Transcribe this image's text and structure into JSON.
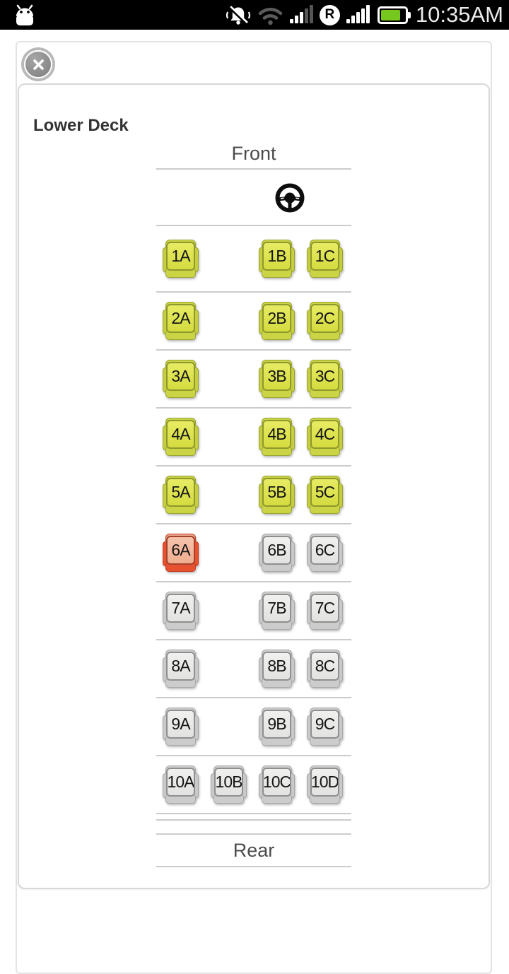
{
  "status_bar": {
    "time": "10:35AM",
    "roaming_label": "R",
    "battery_color": "#76c81e",
    "icons": [
      "android-logo-icon",
      "vibrate-silent-icon",
      "wifi-icon",
      "signal-strength-sim1-icon",
      "roaming-r-icon",
      "signal-strength-sim2-icon",
      "battery-icon"
    ]
  },
  "overlay": {
    "close_button": "close"
  },
  "deck": {
    "title": "Lower Deck",
    "front_label": "Front",
    "rear_label": "Rear"
  },
  "seat_legend_colors": {
    "available": "#dce24e",
    "selected": "#e8512f",
    "booked": "#dcdcda"
  },
  "seat_rows": [
    {
      "row": 1,
      "seats": [
        {
          "label": "1A",
          "state": "available",
          "col": 1
        },
        {
          "label": "1B",
          "state": "available",
          "col": 3
        },
        {
          "label": "1C",
          "state": "available",
          "col": 4
        }
      ]
    },
    {
      "row": 2,
      "seats": [
        {
          "label": "2A",
          "state": "available",
          "col": 1
        },
        {
          "label": "2B",
          "state": "available",
          "col": 3
        },
        {
          "label": "2C",
          "state": "available",
          "col": 4
        }
      ]
    },
    {
      "row": 3,
      "seats": [
        {
          "label": "3A",
          "state": "available",
          "col": 1
        },
        {
          "label": "3B",
          "state": "available",
          "col": 3
        },
        {
          "label": "3C",
          "state": "available",
          "col": 4
        }
      ]
    },
    {
      "row": 4,
      "seats": [
        {
          "label": "4A",
          "state": "available",
          "col": 1
        },
        {
          "label": "4B",
          "state": "available",
          "col": 3
        },
        {
          "label": "4C",
          "state": "available",
          "col": 4
        }
      ]
    },
    {
      "row": 5,
      "seats": [
        {
          "label": "5A",
          "state": "available",
          "col": 1
        },
        {
          "label": "5B",
          "state": "available",
          "col": 3
        },
        {
          "label": "5C",
          "state": "available",
          "col": 4
        }
      ]
    },
    {
      "row": 6,
      "seats": [
        {
          "label": "6A",
          "state": "selected",
          "col": 1
        },
        {
          "label": "6B",
          "state": "booked",
          "col": 3
        },
        {
          "label": "6C",
          "state": "booked",
          "col": 4
        }
      ]
    },
    {
      "row": 7,
      "seats": [
        {
          "label": "7A",
          "state": "booked",
          "col": 1
        },
        {
          "label": "7B",
          "state": "booked",
          "col": 3
        },
        {
          "label": "7C",
          "state": "booked",
          "col": 4
        }
      ]
    },
    {
      "row": 8,
      "seats": [
        {
          "label": "8A",
          "state": "booked",
          "col": 1
        },
        {
          "label": "8B",
          "state": "booked",
          "col": 3
        },
        {
          "label": "8C",
          "state": "booked",
          "col": 4
        }
      ]
    },
    {
      "row": 9,
      "seats": [
        {
          "label": "9A",
          "state": "booked",
          "col": 1
        },
        {
          "label": "9B",
          "state": "booked",
          "col": 3
        },
        {
          "label": "9C",
          "state": "booked",
          "col": 4
        }
      ]
    },
    {
      "row": 10,
      "seats": [
        {
          "label": "10A",
          "state": "booked",
          "col": 1
        },
        {
          "label": "10B",
          "state": "booked",
          "col": 2
        },
        {
          "label": "10C",
          "state": "booked",
          "col": 3
        },
        {
          "label": "10D",
          "state": "booked",
          "col": 4
        }
      ]
    }
  ]
}
